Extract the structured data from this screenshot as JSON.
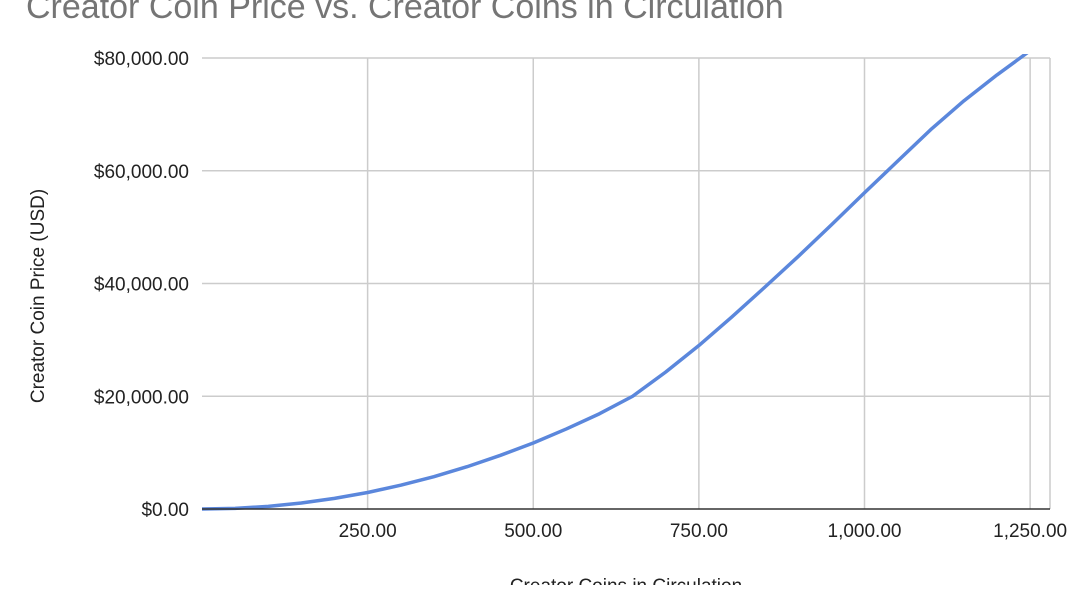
{
  "chart_data": {
    "type": "line",
    "title": "Creator Coin Price vs. Creator Coins in Circulation",
    "xlabel": "Creator Coins in Circulation",
    "ylabel": "Creator Coin Price (USD)",
    "xlim": [
      0,
      1280
    ],
    "ylim": [
      0,
      80000
    ],
    "x_ticks": [
      250,
      500,
      750,
      1000,
      1250
    ],
    "x_tick_labels": [
      "250.00",
      "500.00",
      "750.00",
      "1,000.00",
      "1,250.00"
    ],
    "y_ticks": [
      0,
      20000,
      40000,
      60000,
      80000
    ],
    "y_tick_labels": [
      "$0.00",
      "$20,000.00",
      "$40,000.00",
      "$60,000.00",
      "$80,000.00"
    ],
    "grid": true,
    "series": [
      {
        "color": "#5b87dc",
        "x": [
          0,
          50,
          100,
          150,
          200,
          250,
          300,
          350,
          400,
          450,
          500,
          550,
          600,
          650,
          700,
          750,
          800,
          850,
          900,
          950,
          1000,
          1050,
          1100,
          1150,
          1200,
          1250,
          1280
        ],
        "y": [
          0,
          120,
          470,
          1060,
          1880,
          2930,
          4220,
          5740,
          7500,
          9500,
          11700,
          14200,
          16900,
          20000,
          24300,
          29000,
          34100,
          39400,
          44800,
          50400,
          56100,
          61700,
          67300,
          72400,
          77000,
          81300,
          83600
        ]
      }
    ]
  }
}
